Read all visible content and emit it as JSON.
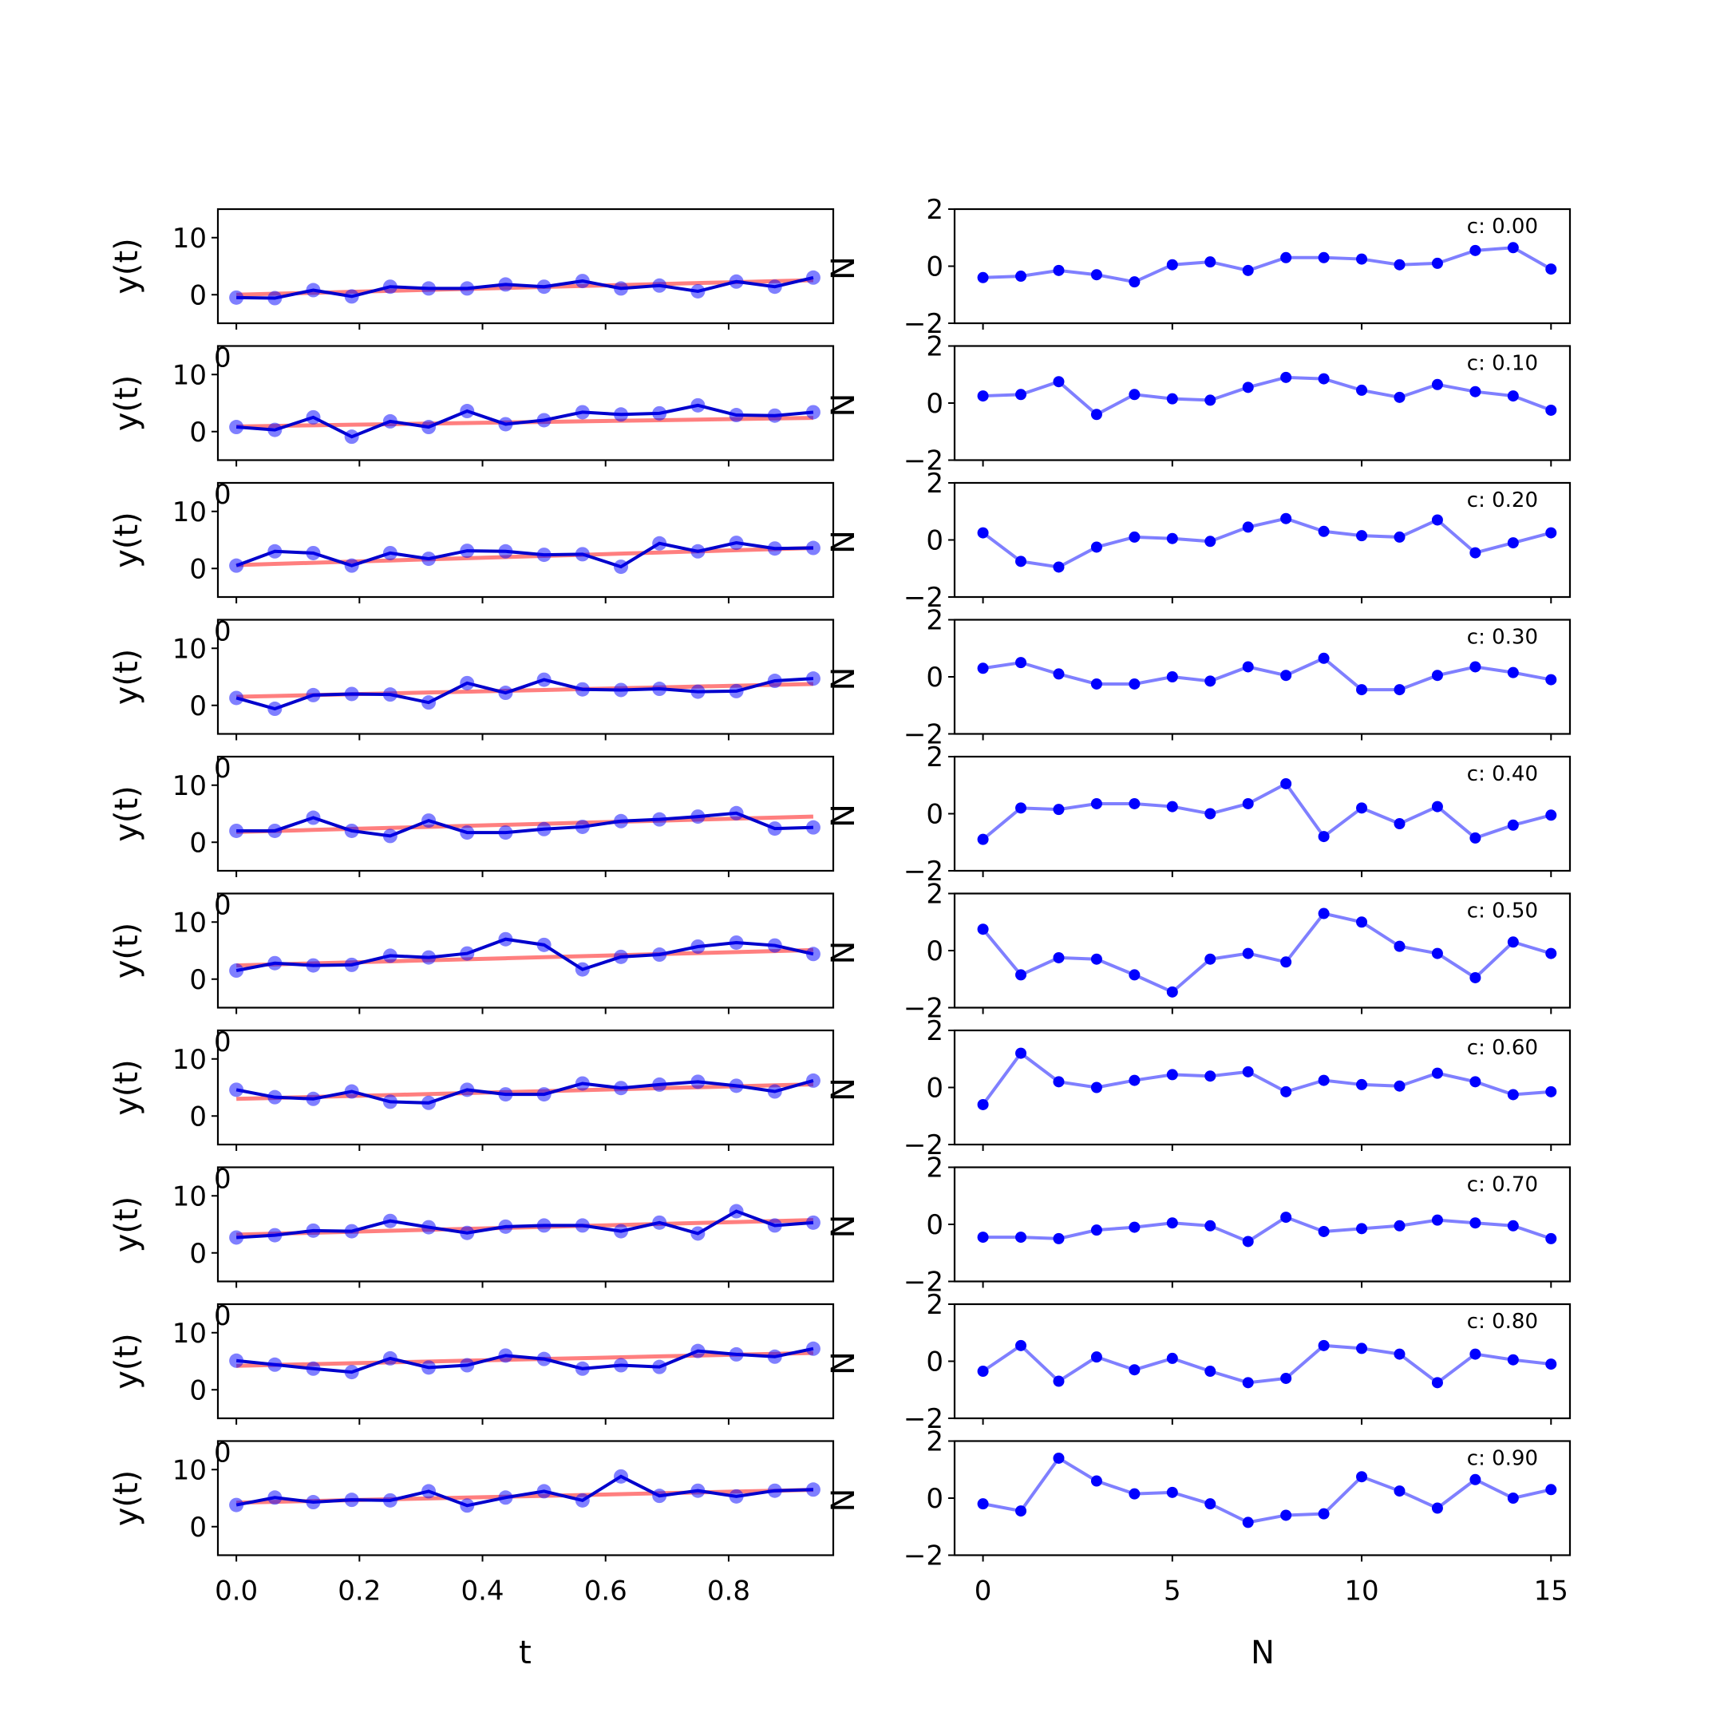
{
  "colors": {
    "data": "#0000ff",
    "fit": "#ff0000",
    "residual": "#0000ff",
    "axes": "#000000"
  },
  "left_column": {
    "xlabel": "t",
    "ylabel": "y(t)",
    "xticks": [
      "0.0",
      "0.2",
      "0.4",
      "0.6",
      "0.8"
    ],
    "yticks": [
      "0",
      "10"
    ],
    "clipped_right_label": "N",
    "clipped_left_label": "0"
  },
  "right_column": {
    "xlabel": "N",
    "yticks": [
      "−2",
      "0",
      "2"
    ],
    "xticks": [
      "0",
      "5",
      "10",
      "15"
    ],
    "clipped_left_label": "N"
  },
  "chart_data": [
    {
      "type": "line",
      "panel": "left",
      "row": 0,
      "x": [
        0.0,
        0.0625,
        0.125,
        0.1875,
        0.25,
        0.3125,
        0.375,
        0.4375,
        0.5,
        0.5625,
        0.625,
        0.6875,
        0.75,
        0.8125,
        0.875,
        0.9375
      ],
      "series": [
        {
          "role": "data",
          "values": [
            -0.5,
            -0.6,
            0.8,
            -0.3,
            1.4,
            1.1,
            1.1,
            1.8,
            1.4,
            2.4,
            1.1,
            1.6,
            0.6,
            2.3,
            1.4,
            3.0
          ]
        },
        {
          "role": "fit",
          "values": [
            0.0,
            0.17,
            0.34,
            0.51,
            0.68,
            0.85,
            1.02,
            1.19,
            1.36,
            1.53,
            1.7,
            1.87,
            2.04,
            2.21,
            2.38,
            2.55
          ]
        }
      ],
      "xlim": [
        -0.03,
        0.97
      ],
      "ylim": [
        -5,
        15
      ]
    },
    {
      "type": "line",
      "panel": "left",
      "row": 1,
      "x": [
        0.0,
        0.0625,
        0.125,
        0.1875,
        0.25,
        0.3125,
        0.375,
        0.4375,
        0.5,
        0.5625,
        0.625,
        0.6875,
        0.75,
        0.8125,
        0.875,
        0.9375
      ],
      "series": [
        {
          "role": "data",
          "values": [
            0.8,
            0.3,
            2.5,
            -0.9,
            1.8,
            0.8,
            3.6,
            1.3,
            2.0,
            3.4,
            3.0,
            3.2,
            4.6,
            2.9,
            2.8,
            3.4
          ]
        },
        {
          "role": "fit",
          "values": [
            0.9,
            1.0,
            1.1,
            1.2,
            1.3,
            1.4,
            1.5,
            1.6,
            1.7,
            1.8,
            1.9,
            2.0,
            2.1,
            2.2,
            2.3,
            2.4
          ]
        }
      ],
      "xlim": [
        -0.03,
        0.97
      ],
      "ylim": [
        -5,
        15
      ]
    },
    {
      "type": "line",
      "panel": "left",
      "row": 2,
      "x": [
        0.0,
        0.0625,
        0.125,
        0.1875,
        0.25,
        0.3125,
        0.375,
        0.4375,
        0.5,
        0.5625,
        0.625,
        0.6875,
        0.75,
        0.8125,
        0.875,
        0.9375
      ],
      "series": [
        {
          "role": "data",
          "values": [
            0.5,
            3.0,
            2.7,
            0.5,
            2.7,
            1.7,
            3.1,
            3.0,
            2.4,
            2.5,
            0.3,
            4.4,
            3.0,
            4.5,
            3.5,
            3.6
          ]
        },
        {
          "role": "fit",
          "values": [
            0.6,
            0.8,
            1.0,
            1.2,
            1.4,
            1.6,
            1.8,
            2.0,
            2.2,
            2.4,
            2.6,
            2.8,
            3.0,
            3.2,
            3.4,
            3.6
          ]
        }
      ],
      "xlim": [
        -0.03,
        0.97
      ],
      "ylim": [
        -5,
        15
      ]
    },
    {
      "type": "line",
      "panel": "left",
      "row": 3,
      "x": [
        0.0,
        0.0625,
        0.125,
        0.1875,
        0.25,
        0.3125,
        0.375,
        0.4375,
        0.5,
        0.5625,
        0.625,
        0.6875,
        0.75,
        0.8125,
        0.875,
        0.9375
      ],
      "series": [
        {
          "role": "data",
          "values": [
            1.3,
            -0.6,
            1.8,
            2.0,
            1.9,
            0.5,
            3.9,
            2.2,
            4.5,
            2.8,
            2.7,
            2.9,
            2.4,
            2.5,
            4.3,
            4.7
          ]
        },
        {
          "role": "fit",
          "values": [
            1.5,
            1.65,
            1.8,
            1.95,
            2.1,
            2.25,
            2.4,
            2.55,
            2.7,
            2.85,
            3.0,
            3.15,
            3.3,
            3.45,
            3.6,
            3.75
          ]
        }
      ],
      "xlim": [
        -0.03,
        0.97
      ],
      "ylim": [
        -5,
        15
      ]
    },
    {
      "type": "line",
      "panel": "left",
      "row": 4,
      "x": [
        0.0,
        0.0625,
        0.125,
        0.1875,
        0.25,
        0.3125,
        0.375,
        0.4375,
        0.5,
        0.5625,
        0.625,
        0.6875,
        0.75,
        0.8125,
        0.875,
        0.9375
      ],
      "series": [
        {
          "role": "data",
          "values": [
            2.0,
            2.0,
            4.3,
            2.0,
            1.1,
            3.8,
            1.7,
            1.7,
            2.3,
            2.7,
            3.7,
            4.0,
            4.5,
            5.1,
            2.4,
            2.6
          ]
        },
        {
          "role": "fit",
          "values": [
            1.8,
            1.98,
            2.16,
            2.34,
            2.52,
            2.7,
            2.88,
            3.06,
            3.24,
            3.42,
            3.6,
            3.78,
            3.96,
            4.14,
            4.32,
            4.5
          ]
        }
      ],
      "xlim": [
        -0.03,
        0.97
      ],
      "ylim": [
        -5,
        15
      ]
    },
    {
      "type": "line",
      "panel": "left",
      "row": 5,
      "x": [
        0.0,
        0.0625,
        0.125,
        0.1875,
        0.25,
        0.3125,
        0.375,
        0.4375,
        0.5,
        0.5625,
        0.625,
        0.6875,
        0.75,
        0.8125,
        0.875,
        0.9375
      ],
      "series": [
        {
          "role": "data",
          "values": [
            1.5,
            2.8,
            2.4,
            2.5,
            4.1,
            3.8,
            4.5,
            7.0,
            6.0,
            1.7,
            3.9,
            4.3,
            5.7,
            6.4,
            5.9,
            4.4
          ]
        },
        {
          "role": "fit",
          "values": [
            2.4,
            2.58,
            2.76,
            2.94,
            3.12,
            3.3,
            3.48,
            3.66,
            3.84,
            4.02,
            4.2,
            4.38,
            4.56,
            4.74,
            4.92,
            5.1
          ]
        }
      ],
      "xlim": [
        -0.03,
        0.97
      ],
      "ylim": [
        -5,
        15
      ]
    },
    {
      "type": "line",
      "panel": "left",
      "row": 6,
      "x": [
        0.0,
        0.0625,
        0.125,
        0.1875,
        0.25,
        0.3125,
        0.375,
        0.4375,
        0.5,
        0.5625,
        0.625,
        0.6875,
        0.75,
        0.8125,
        0.875,
        0.9375
      ],
      "series": [
        {
          "role": "data",
          "values": [
            4.6,
            3.3,
            3.0,
            4.3,
            2.5,
            2.3,
            4.6,
            3.8,
            3.8,
            5.7,
            4.9,
            5.5,
            6.0,
            5.3,
            4.3,
            6.2
          ]
        },
        {
          "role": "fit",
          "values": [
            3.0,
            3.17,
            3.34,
            3.51,
            3.68,
            3.85,
            4.02,
            4.19,
            4.36,
            4.53,
            4.7,
            4.87,
            5.04,
            5.21,
            5.38,
            5.55
          ]
        }
      ],
      "xlim": [
        -0.03,
        0.97
      ],
      "ylim": [
        -5,
        15
      ]
    },
    {
      "type": "line",
      "panel": "left",
      "row": 7,
      "x": [
        0.0,
        0.0625,
        0.125,
        0.1875,
        0.25,
        0.3125,
        0.375,
        0.4375,
        0.5,
        0.5625,
        0.625,
        0.6875,
        0.75,
        0.8125,
        0.875,
        0.9375
      ],
      "series": [
        {
          "role": "data",
          "values": [
            2.7,
            3.1,
            3.9,
            3.8,
            5.6,
            4.5,
            3.5,
            4.6,
            4.8,
            4.8,
            3.8,
            5.3,
            3.4,
            7.3,
            4.8,
            5.3
          ]
        },
        {
          "role": "fit",
          "values": [
            3.2,
            3.37,
            3.54,
            3.71,
            3.88,
            4.05,
            4.22,
            4.39,
            4.56,
            4.73,
            4.9,
            5.07,
            5.24,
            5.41,
            5.58,
            5.75
          ]
        }
      ],
      "xlim": [
        -0.03,
        0.97
      ],
      "ylim": [
        -5,
        15
      ]
    },
    {
      "type": "line",
      "panel": "left",
      "row": 8,
      "x": [
        0.0,
        0.0625,
        0.125,
        0.1875,
        0.25,
        0.3125,
        0.375,
        0.4375,
        0.5,
        0.5625,
        0.625,
        0.6875,
        0.75,
        0.8125,
        0.875,
        0.9375
      ],
      "series": [
        {
          "role": "data",
          "values": [
            5.1,
            4.4,
            3.7,
            3.1,
            5.5,
            3.9,
            4.3,
            6.0,
            5.4,
            3.7,
            4.3,
            4.0,
            6.8,
            6.2,
            5.8,
            7.2
          ]
        },
        {
          "role": "fit",
          "values": [
            4.2,
            4.35,
            4.5,
            4.65,
            4.8,
            4.95,
            5.1,
            5.25,
            5.4,
            5.55,
            5.7,
            5.85,
            6.0,
            6.15,
            6.3,
            6.45
          ]
        }
      ],
      "xlim": [
        -0.03,
        0.97
      ],
      "ylim": [
        -5,
        15
      ]
    },
    {
      "type": "line",
      "panel": "left",
      "row": 9,
      "x": [
        0.0,
        0.0625,
        0.125,
        0.1875,
        0.25,
        0.3125,
        0.375,
        0.4375,
        0.5,
        0.5625,
        0.625,
        0.6875,
        0.75,
        0.8125,
        0.875,
        0.9375
      ],
      "series": [
        {
          "role": "data",
          "values": [
            3.8,
            5.1,
            4.3,
            4.7,
            4.6,
            6.2,
            3.7,
            5.1,
            6.2,
            4.6,
            8.8,
            5.4,
            6.3,
            5.3,
            6.3,
            6.5
          ]
        },
        {
          "role": "fit",
          "values": [
            4.2,
            4.35,
            4.5,
            4.65,
            4.8,
            4.95,
            5.1,
            5.25,
            5.4,
            5.55,
            5.7,
            5.85,
            6.0,
            6.15,
            6.3,
            6.45
          ]
        }
      ],
      "xlim": [
        -0.03,
        0.97
      ],
      "ylim": [
        -5,
        15
      ]
    },
    {
      "type": "line",
      "panel": "right",
      "row": 0,
      "annotation": "c: 0.00",
      "x": [
        0,
        1,
        2,
        3,
        4,
        5,
        6,
        7,
        8,
        9,
        10,
        11,
        12,
        13,
        14,
        15
      ],
      "values": [
        -0.4,
        -0.35,
        -0.15,
        -0.3,
        -0.55,
        0.05,
        0.15,
        -0.15,
        0.3,
        0.3,
        0.25,
        0.05,
        0.1,
        0.55,
        0.65,
        -0.1
      ],
      "xlim": [
        -0.75,
        15.5
      ],
      "ylim": [
        -2,
        2
      ]
    },
    {
      "type": "line",
      "panel": "right",
      "row": 1,
      "annotation": "c: 0.10",
      "x": [
        0,
        1,
        2,
        3,
        4,
        5,
        6,
        7,
        8,
        9,
        10,
        11,
        12,
        13,
        14,
        15
      ],
      "values": [
        0.25,
        0.3,
        0.75,
        -0.4,
        0.3,
        0.15,
        0.1,
        0.55,
        0.9,
        0.85,
        0.45,
        0.2,
        0.65,
        0.4,
        0.25,
        -0.25
      ],
      "xlim": [
        -0.75,
        15.5
      ],
      "ylim": [
        -2,
        2
      ]
    },
    {
      "type": "line",
      "panel": "right",
      "row": 2,
      "annotation": "c: 0.20",
      "x": [
        0,
        1,
        2,
        3,
        4,
        5,
        6,
        7,
        8,
        9,
        10,
        11,
        12,
        13,
        14,
        15
      ],
      "values": [
        0.25,
        -0.75,
        -0.95,
        -0.25,
        0.1,
        0.05,
        -0.05,
        0.45,
        0.75,
        0.3,
        0.15,
        0.1,
        0.7,
        -0.45,
        -0.1,
        0.25
      ],
      "xlim": [
        -0.75,
        15.5
      ],
      "ylim": [
        -2,
        2
      ]
    },
    {
      "type": "line",
      "panel": "right",
      "row": 3,
      "annotation": "c: 0.30",
      "x": [
        0,
        1,
        2,
        3,
        4,
        5,
        6,
        7,
        8,
        9,
        10,
        11,
        12,
        13,
        14,
        15
      ],
      "values": [
        0.3,
        0.5,
        0.1,
        -0.25,
        -0.25,
        0.0,
        -0.15,
        0.35,
        0.05,
        0.65,
        -0.45,
        -0.45,
        0.05,
        0.35,
        0.15,
        -0.1
      ],
      "xlim": [
        -0.75,
        15.5
      ],
      "ylim": [
        -2,
        2
      ]
    },
    {
      "type": "line",
      "panel": "right",
      "row": 4,
      "annotation": "c: 0.40",
      "x": [
        0,
        1,
        2,
        3,
        4,
        5,
        6,
        7,
        8,
        9,
        10,
        11,
        12,
        13,
        14,
        15
      ],
      "values": [
        -0.9,
        0.2,
        0.15,
        0.35,
        0.35,
        0.25,
        0.0,
        0.35,
        1.05,
        -0.8,
        0.2,
        -0.35,
        0.25,
        -0.85,
        -0.4,
        -0.05
      ],
      "xlim": [
        -0.75,
        15.5
      ],
      "ylim": [
        -2,
        2
      ]
    },
    {
      "type": "line",
      "panel": "right",
      "row": 5,
      "annotation": "c: 0.50",
      "x": [
        0,
        1,
        2,
        3,
        4,
        5,
        6,
        7,
        8,
        9,
        10,
        11,
        12,
        13,
        14,
        15
      ],
      "values": [
        0.75,
        -0.85,
        -0.25,
        -0.3,
        -0.85,
        -1.45,
        -0.3,
        -0.1,
        -0.4,
        1.3,
        1.0,
        0.15,
        -0.1,
        -0.95,
        0.3,
        -0.1
      ],
      "xlim": [
        -0.75,
        15.5
      ],
      "ylim": [
        -2,
        2
      ]
    },
    {
      "type": "line",
      "panel": "right",
      "row": 6,
      "annotation": "c: 0.60",
      "x": [
        0,
        1,
        2,
        3,
        4,
        5,
        6,
        7,
        8,
        9,
        10,
        11,
        12,
        13,
        14,
        15
      ],
      "values": [
        -0.6,
        1.2,
        0.2,
        0.0,
        0.25,
        0.45,
        0.4,
        0.55,
        -0.15,
        0.25,
        0.1,
        0.05,
        0.5,
        0.2,
        -0.25,
        -0.15
      ],
      "xlim": [
        -0.75,
        15.5
      ],
      "ylim": [
        -2,
        2
      ]
    },
    {
      "type": "line",
      "panel": "right",
      "row": 7,
      "annotation": "c: 0.70",
      "x": [
        0,
        1,
        2,
        3,
        4,
        5,
        6,
        7,
        8,
        9,
        10,
        11,
        12,
        13,
        14,
        15
      ],
      "values": [
        -0.45,
        -0.45,
        -0.5,
        -0.2,
        -0.1,
        0.05,
        -0.05,
        -0.6,
        0.25,
        -0.25,
        -0.15,
        -0.05,
        0.15,
        0.05,
        -0.05,
        -0.5
      ],
      "xlim": [
        -0.75,
        15.5
      ],
      "ylim": [
        -2,
        2
      ]
    },
    {
      "type": "line",
      "panel": "right",
      "row": 8,
      "annotation": "c: 0.80",
      "x": [
        0,
        1,
        2,
        3,
        4,
        5,
        6,
        7,
        8,
        9,
        10,
        11,
        12,
        13,
        14,
        15
      ],
      "values": [
        -0.35,
        0.55,
        -0.7,
        0.15,
        -0.3,
        0.1,
        -0.35,
        -0.75,
        -0.6,
        0.55,
        0.45,
        0.25,
        -0.75,
        0.25,
        0.05,
        -0.1
      ],
      "xlim": [
        -0.75,
        15.5
      ],
      "ylim": [
        -2,
        2
      ]
    },
    {
      "type": "line",
      "panel": "right",
      "row": 9,
      "annotation": "c: 0.90",
      "x": [
        0,
        1,
        2,
        3,
        4,
        5,
        6,
        7,
        8,
        9,
        10,
        11,
        12,
        13,
        14,
        15
      ],
      "values": [
        -0.2,
        -0.45,
        1.4,
        0.6,
        0.15,
        0.2,
        -0.2,
        -0.85,
        -0.6,
        -0.55,
        0.75,
        0.25,
        -0.35,
        0.65,
        0.0,
        0.3
      ],
      "xlim": [
        -0.75,
        15.5
      ],
      "ylim": [
        -2,
        2
      ]
    }
  ]
}
